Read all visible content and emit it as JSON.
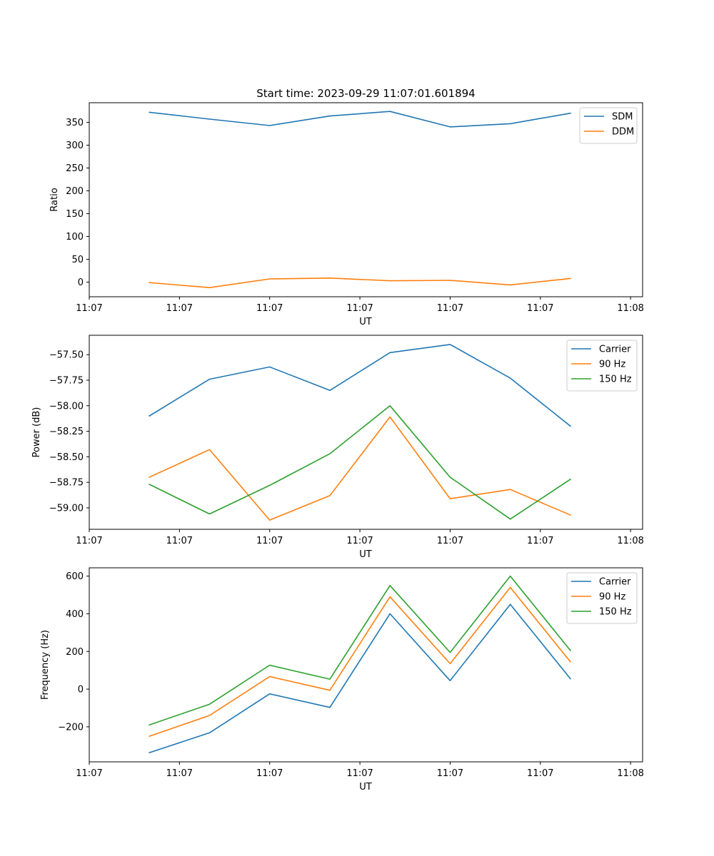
{
  "figure": {
    "title": "Start time: 2023-09-29 11:07:01.601894"
  },
  "colors": {
    "series1": "#1f77b4",
    "series2": "#ff7f0e",
    "series3": "#2ca02c"
  },
  "chart_data": [
    {
      "type": "line",
      "title": "Start time: 2023-09-29 11:07:01.601894",
      "xlabel": "UT",
      "ylabel": "Ratio",
      "x": [
        1,
        2,
        3,
        4,
        5,
        6,
        7,
        8
      ],
      "xlim": [
        0,
        9.2
      ],
      "x_ticks": [
        0,
        1.5,
        3,
        4.5,
        6,
        7.5,
        9
      ],
      "x_tick_labels": [
        "11:07",
        "11:07",
        "11:07",
        "11:07",
        "11:07",
        "11:07",
        "11:08"
      ],
      "ylim": [
        -32,
        393
      ],
      "y_ticks": [
        0,
        50,
        100,
        150,
        200,
        250,
        300,
        350
      ],
      "y_tick_labels": [
        "0",
        "50",
        "100",
        "150",
        "200",
        "250",
        "300",
        "350"
      ],
      "legend": "top-right",
      "series": [
        {
          "name": "SDM",
          "color": "#1f77b4",
          "values": [
            372,
            357,
            343,
            364,
            374,
            340,
            347,
            370
          ]
        },
        {
          "name": "DDM",
          "color": "#ff7f0e",
          "values": [
            -1,
            -12,
            7,
            9,
            3,
            4,
            -6,
            8
          ]
        }
      ]
    },
    {
      "type": "line",
      "title": "",
      "xlabel": "UT",
      "ylabel": "Power (dB)",
      "x": [
        1,
        2,
        3,
        4,
        5,
        6,
        7,
        8
      ],
      "xlim": [
        0,
        9.2
      ],
      "x_ticks": [
        0,
        1.5,
        3,
        4.5,
        6,
        7.5,
        9
      ],
      "x_tick_labels": [
        "11:07",
        "11:07",
        "11:07",
        "11:07",
        "11:07",
        "11:07",
        "11:08"
      ],
      "ylim": [
        -59.21,
        -57.31
      ],
      "y_ticks": [
        -59.0,
        -58.75,
        -58.5,
        -58.25,
        -58.0,
        -57.75,
        -57.5
      ],
      "y_tick_labels": [
        "−59.00",
        "−58.75",
        "−58.50",
        "−58.25",
        "−58.00",
        "−57.75",
        "−57.50"
      ],
      "legend": "top-right",
      "series": [
        {
          "name": "Carrier",
          "color": "#1f77b4",
          "values": [
            -58.1,
            -57.74,
            -57.62,
            -57.85,
            -57.48,
            -57.4,
            -57.73,
            -58.2
          ]
        },
        {
          "name": "90 Hz",
          "color": "#ff7f0e",
          "values": [
            -58.7,
            -58.43,
            -59.12,
            -58.88,
            -58.11,
            -58.91,
            -58.82,
            -59.07
          ]
        },
        {
          "name": "150 Hz",
          "color": "#2ca02c",
          "values": [
            -58.77,
            -59.06,
            -58.78,
            -58.47,
            -58.0,
            -58.7,
            -59.11,
            -58.72
          ]
        }
      ]
    },
    {
      "type": "line",
      "title": "",
      "xlabel": "UT",
      "ylabel": "Frequency (Hz)",
      "x": [
        1,
        2,
        3,
        4,
        5,
        6,
        7,
        8
      ],
      "xlim": [
        0,
        9.2
      ],
      "x_ticks": [
        0,
        1.5,
        3,
        4.5,
        6,
        7.5,
        9
      ],
      "x_tick_labels": [
        "11:07",
        "11:07",
        "11:07",
        "11:07",
        "11:07",
        "11:07",
        "11:08"
      ],
      "ylim": [
        -386,
        644
      ],
      "y_ticks": [
        -200,
        0,
        200,
        400,
        600
      ],
      "y_tick_labels": [
        "−200",
        "0",
        "200",
        "400",
        "600"
      ],
      "legend": "top-right",
      "series": [
        {
          "name": "Carrier",
          "color": "#1f77b4",
          "values": [
            -337,
            -232,
            -25,
            -97,
            400,
            45,
            450,
            55
          ]
        },
        {
          "name": "90 Hz",
          "color": "#ff7f0e",
          "values": [
            -250,
            -140,
            67,
            -6,
            490,
            135,
            540,
            145
          ]
        },
        {
          "name": "150 Hz",
          "color": "#2ca02c",
          "values": [
            -190,
            -80,
            127,
            53,
            550,
            195,
            600,
            205
          ]
        }
      ]
    }
  ]
}
